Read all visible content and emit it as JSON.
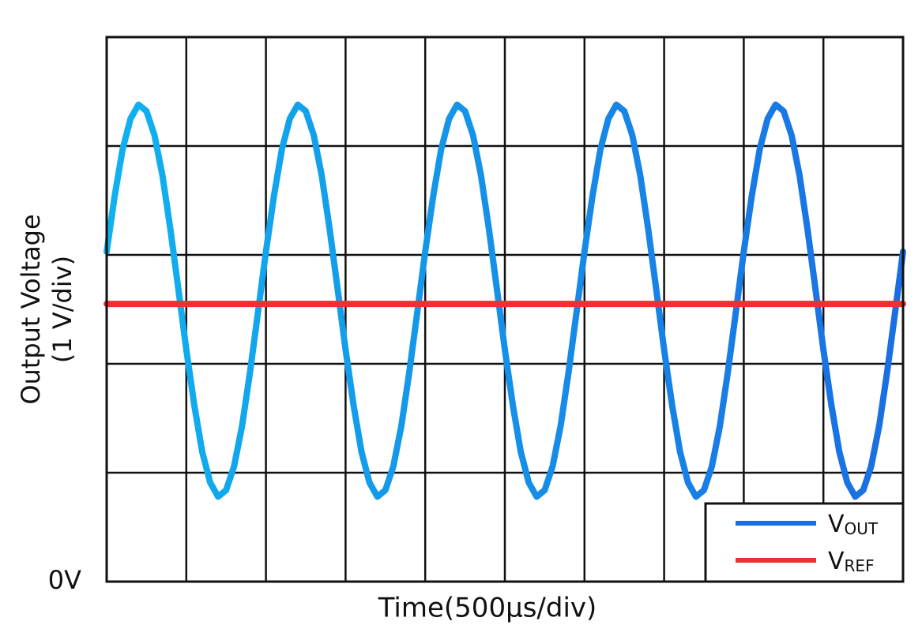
{
  "chart_data": {
    "type": "line",
    "xlabel": "Time(500µs/div)",
    "ylabel": [
      "Output Voltage",
      "(1 V/div)"
    ],
    "xlim": [
      0,
      5000
    ],
    "ylim": [
      0,
      5
    ],
    "xgrid": [
      0,
      500,
      1000,
      1500,
      2000,
      2500,
      3000,
      3500,
      4000,
      4500,
      5000
    ],
    "ygrid": [
      0,
      1,
      2,
      3,
      4,
      5
    ],
    "yticks": [
      {
        "value": 0,
        "label": "0V"
      }
    ],
    "legend": "lower right",
    "series": [
      {
        "name": "VOUT",
        "color": "#1a6ee2",
        "gradient_start": "#10b2ee",
        "x": [
          0,
          50,
          100,
          150,
          200,
          250,
          300,
          350,
          400,
          450,
          500,
          550,
          600,
          650,
          700,
          750,
          800,
          850,
          900,
          950,
          1000,
          1050,
          1100,
          1150,
          1200,
          1250,
          1300,
          1350,
          1400,
          1450,
          1500,
          1550,
          1600,
          1650,
          1700,
          1750,
          1800,
          1850,
          1900,
          1950,
          2000,
          2050,
          2100,
          2150,
          2200,
          2250,
          2300,
          2350,
          2400,
          2450,
          2500,
          2550,
          2600,
          2650,
          2700,
          2750,
          2800,
          2850,
          2900,
          2950,
          3000,
          3050,
          3100,
          3150,
          3200,
          3250,
          3300,
          3350,
          3400,
          3450,
          3500,
          3550,
          3600,
          3650,
          3700,
          3750,
          3800,
          3850,
          3900,
          3950,
          4000,
          4050,
          4100,
          4150,
          4200,
          4250,
          4300,
          4350,
          4400,
          4450,
          4500,
          4550,
          4600,
          4650,
          4700,
          4750,
          4800,
          4850,
          4900,
          4950,
          5000
        ],
        "values": [
          3.03,
          3.54,
          3.97,
          4.25,
          4.38,
          4.32,
          4.1,
          3.73,
          3.24,
          2.69,
          2.13,
          1.62,
          1.19,
          0.91,
          0.78,
          0.84,
          1.06,
          1.43,
          1.92,
          2.47,
          3.03,
          3.54,
          3.97,
          4.25,
          4.38,
          4.32,
          4.1,
          3.73,
          3.24,
          2.69,
          2.13,
          1.62,
          1.19,
          0.91,
          0.78,
          0.84,
          1.06,
          1.43,
          1.92,
          2.47,
          3.03,
          3.54,
          3.97,
          4.25,
          4.38,
          4.32,
          4.1,
          3.73,
          3.24,
          2.69,
          2.13,
          1.62,
          1.19,
          0.91,
          0.78,
          0.84,
          1.06,
          1.43,
          1.92,
          2.47,
          3.03,
          3.54,
          3.97,
          4.25,
          4.38,
          4.32,
          4.1,
          3.73,
          3.24,
          2.69,
          2.13,
          1.62,
          1.19,
          0.91,
          0.78,
          0.84,
          1.06,
          1.43,
          1.92,
          2.47,
          3.03,
          3.54,
          3.97,
          4.25,
          4.38,
          4.32,
          4.1,
          3.73,
          3.24,
          2.69,
          2.13,
          1.62,
          1.19,
          0.91,
          0.78,
          0.84,
          1.06,
          1.43,
          1.92,
          2.47,
          3.03
        ]
      },
      {
        "name": "VREF",
        "color": "#f03030",
        "x": [
          0,
          5000
        ],
        "values": [
          2.55,
          2.55
        ]
      }
    ]
  }
}
